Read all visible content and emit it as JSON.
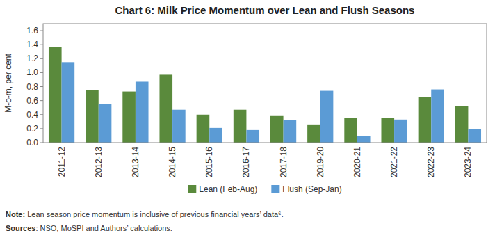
{
  "chart_data": {
    "type": "bar",
    "title": "Chart 6: Milk Price Momentum over Lean and Flush Seasons",
    "ylabel": "M-o-m, per cent",
    "categories": [
      "2011-12",
      "2012-13",
      "2013-14",
      "2014-15",
      "2015-16",
      "2016-17",
      "2017-18",
      "2019-20",
      "2020-21",
      "2021-22",
      "2022-23",
      "2023-24"
    ],
    "series": [
      {
        "name": "Lean (Feb-Aug)",
        "color": "#5a8a3c",
        "values": [
          1.37,
          0.75,
          0.73,
          0.97,
          0.4,
          0.47,
          0.38,
          0.26,
          0.35,
          0.35,
          0.65,
          0.52
        ]
      },
      {
        "name": "Flush (Sep-Jan)",
        "color": "#5b9bd5",
        "values": [
          1.15,
          0.55,
          0.87,
          0.47,
          0.21,
          0.18,
          0.32,
          0.74,
          0.09,
          0.33,
          0.76,
          0.19
        ]
      }
    ],
    "ylim": [
      0,
      1.7
    ],
    "yticks": [
      {
        "value": 0,
        "label": "0.0"
      },
      0.2,
      0.4,
      0.6,
      0.8,
      {
        "value": 1,
        "label": "1.0"
      },
      1.2,
      1.4,
      1.6
    ],
    "grid": false,
    "legend": "bottom",
    "annotations": [
      "Note:",
      " Lean season price momentum is inclusive of previous financial years’ data⁶.",
      "Sources",
      ": NSO, MoSPI and Authors’ calculations."
    ]
  }
}
